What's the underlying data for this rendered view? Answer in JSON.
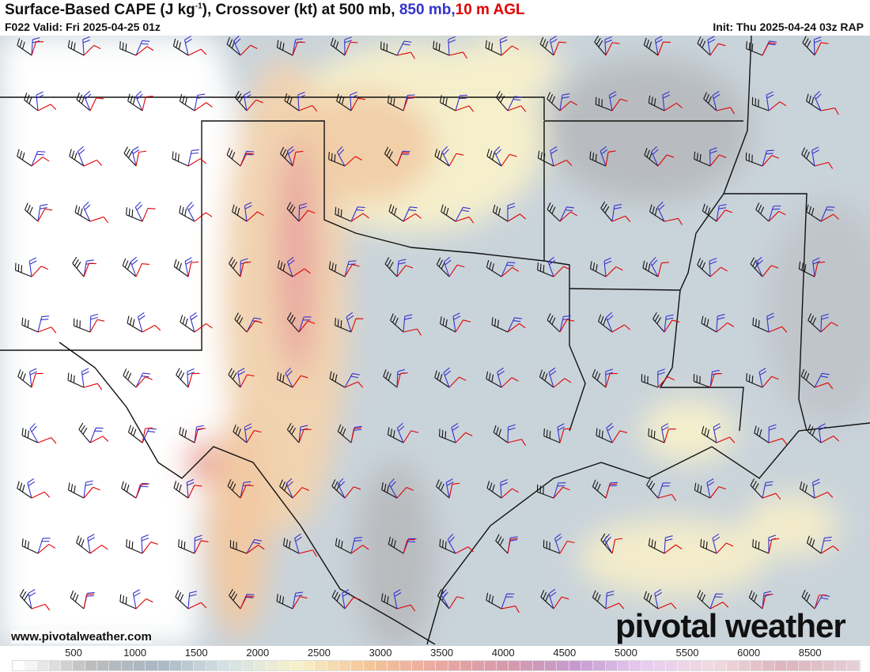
{
  "header": {
    "title_main": "Surface-Based CAPE (J kg",
    "title_sup": "-1",
    "title_rest": "), Crossover (kt) at 500 mb, ",
    "title_850": "850 mb,",
    "title_10m": "10 m AGL",
    "valid": "F022 Valid: Fri 2025-04-25 01z",
    "init": "Init: Thu 2025-04-24 03z RAP"
  },
  "footer": {
    "website": "www.pivotalweather.com",
    "logo": "pivotal weather"
  },
  "colorbar": {
    "labels": [
      "500",
      "1000",
      "1500",
      "2000",
      "2500",
      "3000",
      "3500",
      "4000",
      "4500",
      "5000",
      "5500",
      "6000",
      "8500"
    ],
    "ramp": [
      "#ffffff",
      "#bdbdbd",
      "#a9b6c2",
      "#d5e2e6",
      "#f7f1c9",
      "#f3c79a",
      "#eba9a0",
      "#d69aab",
      "#c59bcf",
      "#e7cdf0",
      "#f0dbe0",
      "#dcb3bd",
      "#e4cfd4"
    ]
  },
  "colors": {
    "wind_500mb": "#111111",
    "wind_850mb": "#3333cc",
    "wind_10m": "#e00000"
  }
}
